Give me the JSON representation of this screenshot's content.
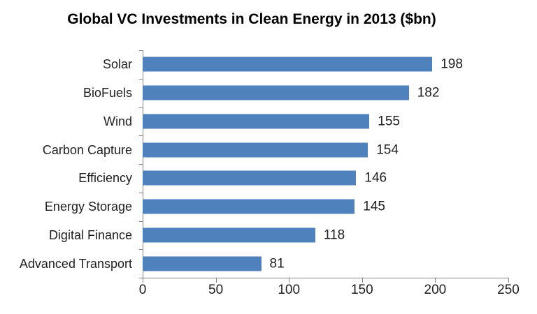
{
  "chart_data": {
    "type": "bar",
    "orientation": "horizontal",
    "title": "Global VC Investments in Clean Energy in 2013 ($bn)",
    "categories": [
      "Solar",
      "BioFuels",
      "Wind",
      "Carbon Capture",
      "Efficiency",
      "Energy Storage",
      "Digital Finance",
      "Advanced Transport"
    ],
    "values": [
      198,
      182,
      155,
      154,
      146,
      145,
      118,
      81
    ],
    "x_ticks": [
      0,
      50,
      100,
      150,
      200,
      250
    ],
    "xlim": [
      0,
      250
    ],
    "grid": false,
    "legend": false,
    "bar_color": "#4f81bd",
    "axis_color": "#858585",
    "text_color": "#1f1f1f",
    "title_color": "#000000",
    "background_color": "#ffffff"
  }
}
